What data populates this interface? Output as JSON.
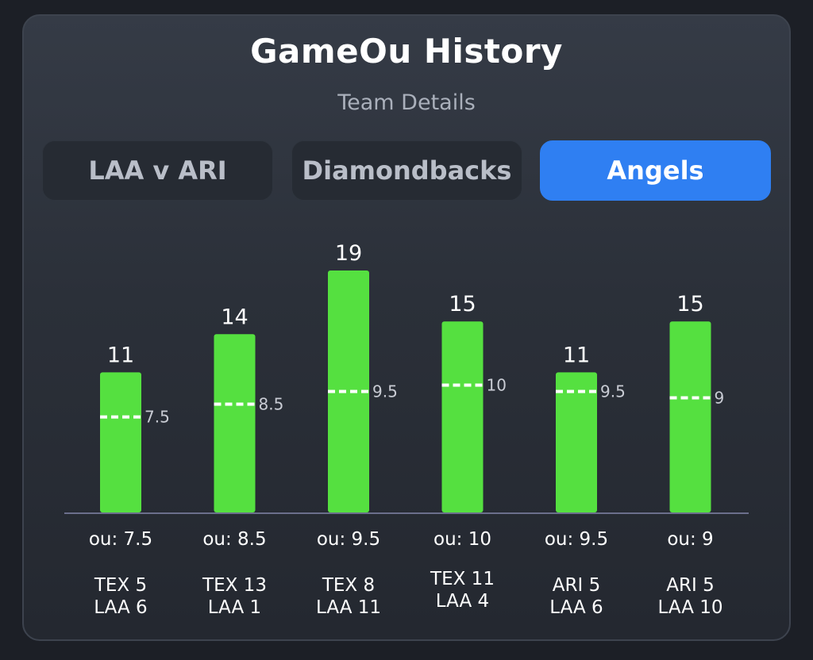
{
  "header": {
    "title": "GameOu History",
    "subtitle": "Team Details"
  },
  "tabs": [
    {
      "label": "LAA v ARI",
      "active": false
    },
    {
      "label": "Diamondbacks",
      "active": false
    },
    {
      "label": "Angels",
      "active": true
    }
  ],
  "colors": {
    "bar": "#55e040",
    "active_tab": "#2f7ff2",
    "baseline": "#6b6f8c"
  },
  "chart_data": {
    "type": "bar",
    "categories": [
      "ou: 7.5",
      "ou: 8.5",
      "ou: 9.5",
      "ou: 10",
      "ou: 9.5",
      "ou: 9"
    ],
    "values": [
      11,
      14,
      19,
      15,
      11,
      15
    ],
    "ou_lines": [
      7.5,
      8.5,
      9.5,
      10,
      9.5,
      9
    ],
    "ou_labels": [
      "7.5",
      "8.5",
      "9.5",
      "10",
      "9.5",
      "9"
    ],
    "value_labels": [
      "11",
      "14",
      "19",
      "15",
      "11",
      "15"
    ],
    "games": [
      [
        "TEX 5",
        "LAA 6"
      ],
      [
        "TEX 13",
        "LAA 1"
      ],
      [
        "TEX 8",
        "LAA 11"
      ],
      [
        "TEX 11",
        "LAA 4"
      ],
      [
        "ARI 5",
        "LAA 6"
      ],
      [
        "ARI 5",
        "LAA 10"
      ]
    ],
    "ylim": [
      0,
      19
    ],
    "grid": false,
    "legend": "none"
  }
}
